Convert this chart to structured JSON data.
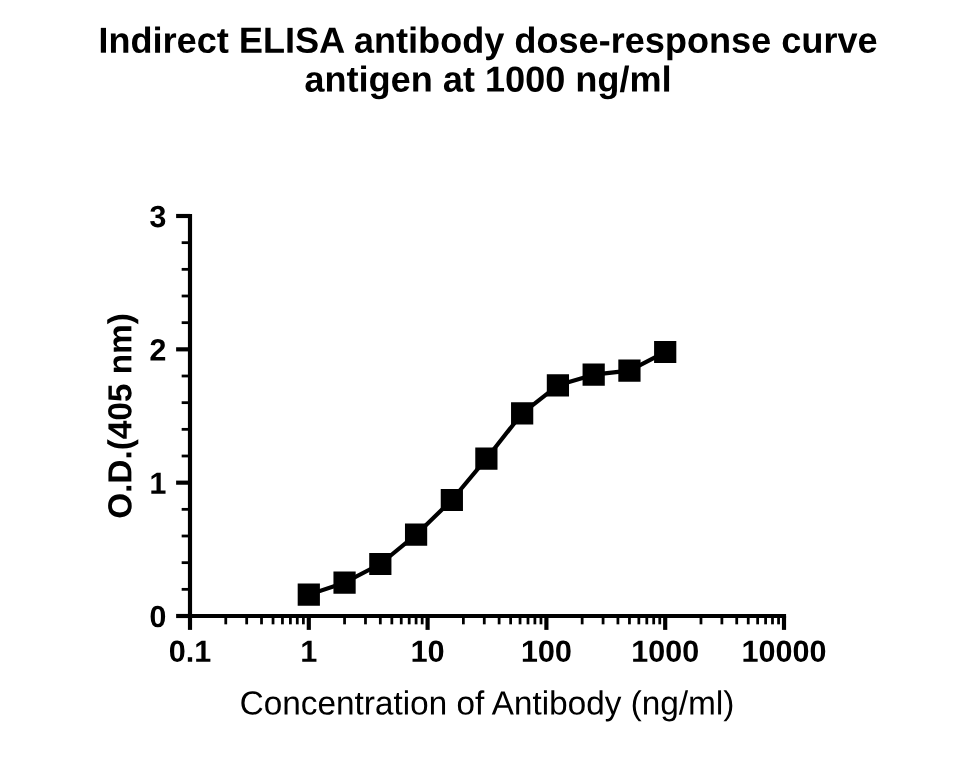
{
  "chart_data": {
    "type": "line",
    "title": "Indirect ELISA antibody dose-response curve\nantigen at 1000 ng/ml",
    "xlabel": "Concentration of Antibody (ng/ml)",
    "ylabel": "O.D.(405 nm)",
    "x": [
      1,
      2,
      4,
      8,
      16,
      31.25,
      62.5,
      125,
      250,
      500,
      1000
    ],
    "series": [
      {
        "color": "#000000",
        "values": [
          0.16,
          0.25,
          0.39,
          0.61,
          0.87,
          1.18,
          1.52,
          1.73,
          1.81,
          1.84,
          1.98
        ]
      }
    ],
    "log": "x",
    "xlim": [
      0.1,
      10000
    ],
    "xticks": [
      0.1,
      1,
      10,
      100,
      1000,
      10000
    ],
    "ylim": [
      0,
      3
    ],
    "yticks": [
      0,
      1,
      2,
      3
    ],
    "marker": "square",
    "line_style": "solid",
    "grid": false,
    "legend": false
  }
}
